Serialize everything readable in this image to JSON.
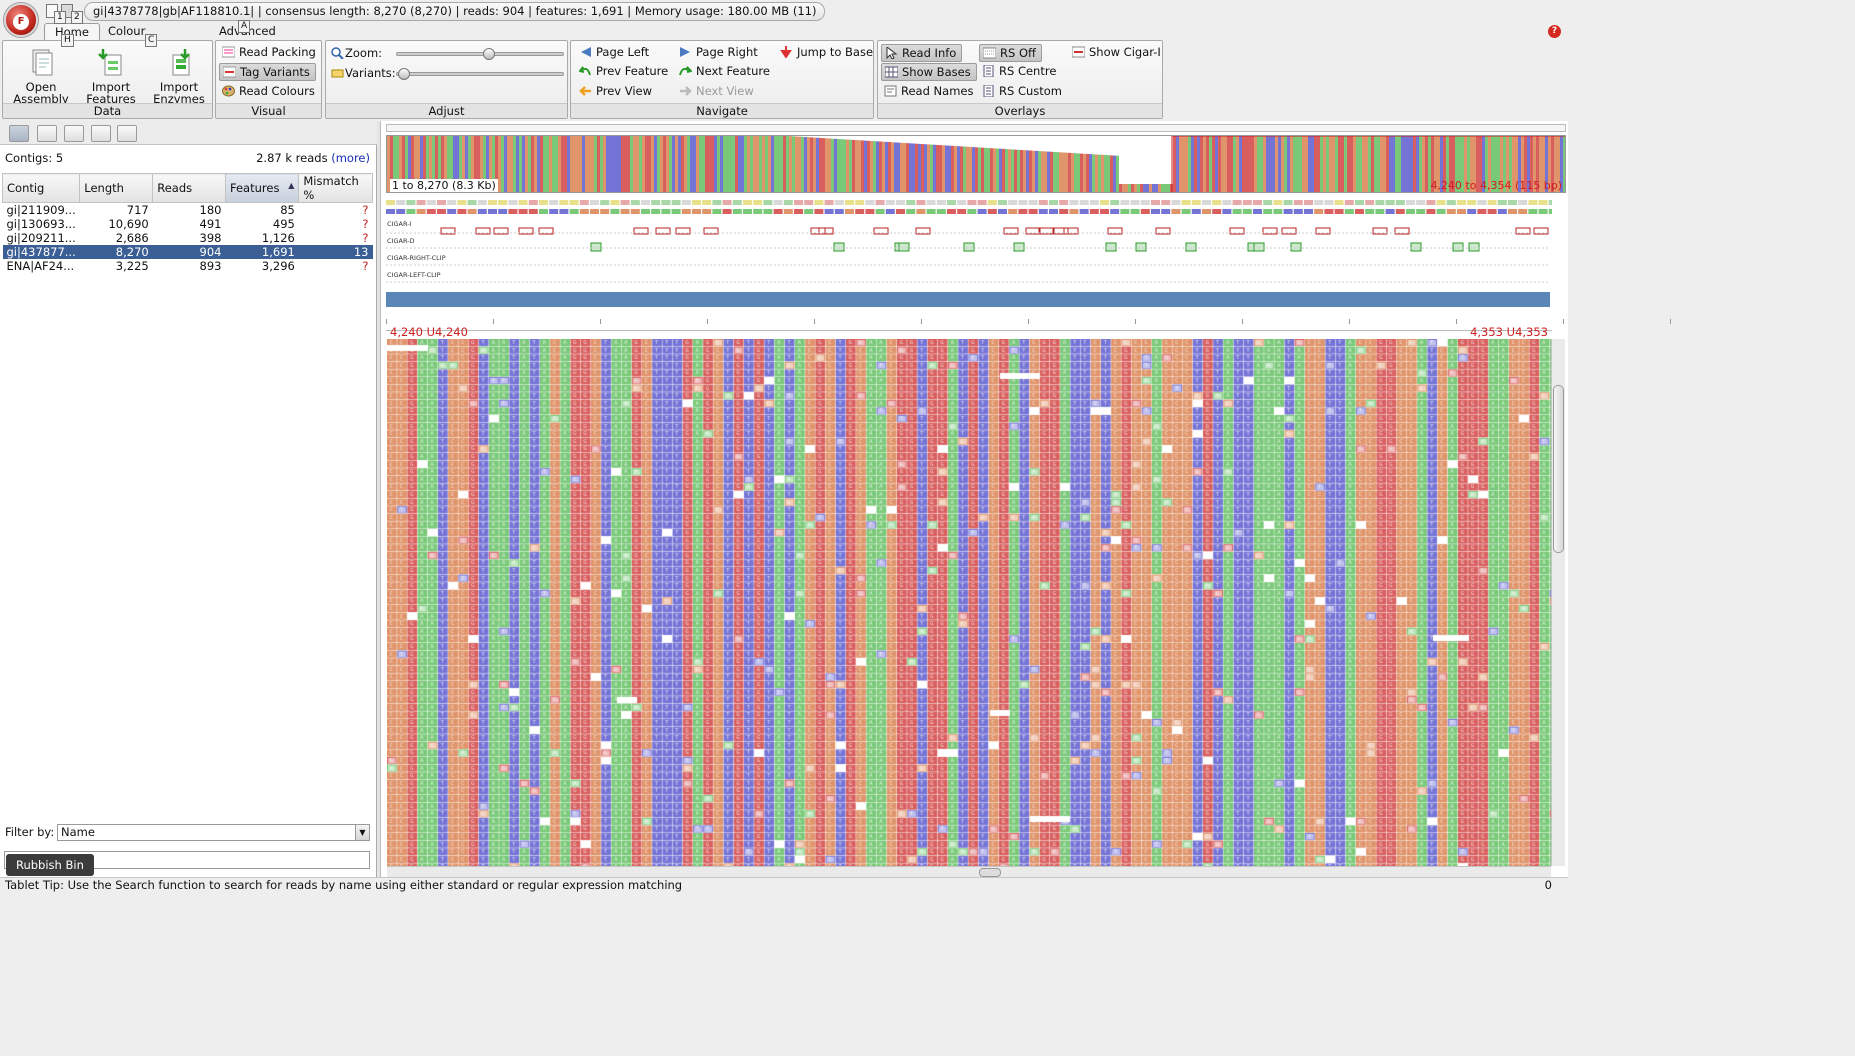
{
  "app": {
    "orb_letter": "F",
    "title": "gi|4378778|gb|AF118810.1|  |  consensus length: 8,270 (8,270)  |  reads: 904  |  features: 1,691  |  Memory usage: 180.00 MB (11)"
  },
  "keytips": {
    "q1": "1",
    "q2": "2",
    "home": "H",
    "colour": "C",
    "advanced": "A"
  },
  "tabs": [
    {
      "label": "Home"
    },
    {
      "label": "Colour Schemes"
    },
    {
      "label": "Advanced"
    }
  ],
  "ribbon": {
    "data": {
      "label": "Data",
      "open_assembly": "Open\nAssembly",
      "import_features": "Import\nFeatures",
      "import_enzymes": "Import\nEnzymes"
    },
    "visual": {
      "label": "Visual",
      "read_packing": "Read Packing",
      "tag_variants": "Tag Variants",
      "read_colours": "Read Colours"
    },
    "adjust": {
      "label": "Adjust",
      "zoom": "Zoom:",
      "variants": "Variants:"
    },
    "navigate": {
      "label": "Navigate",
      "page_left": "Page Left",
      "page_right": "Page Right",
      "jump_to_base": "Jump to Base",
      "prev_feature": "Prev Feature",
      "next_feature": "Next Feature",
      "prev_view": "Prev View",
      "next_view": "Next View"
    },
    "overlays": {
      "label": "Overlays",
      "read_info": "Read Info",
      "rs_off": "RS Off",
      "show_cigar": "Show Cigar-I",
      "show_bases": "Show Bases",
      "rs_centre": "RS Centre",
      "read_names": "Read Names",
      "rs_custom": "RS Custom"
    }
  },
  "left": {
    "contigs": "Contigs: 5",
    "reads_count": "2.87 k reads",
    "more": "(more)",
    "columns": [
      "Contig",
      "Length",
      "Reads",
      "Features",
      "Mismatch %"
    ],
    "rows": [
      {
        "contig": "gi|211909...",
        "length": "717",
        "reads": "180",
        "features": "85",
        "mismatch": "?"
      },
      {
        "contig": "gi|130693...",
        "length": "10,690",
        "reads": "491",
        "features": "495",
        "mismatch": "?"
      },
      {
        "contig": "gi|209211...",
        "length": "2,686",
        "reads": "398",
        "features": "1,126",
        "mismatch": "?"
      },
      {
        "contig": "gi|437877...",
        "length": "8,270",
        "reads": "904",
        "features": "1,691",
        "mismatch": "13"
      },
      {
        "contig": "ENA|AF24...",
        "length": "3,225",
        "reads": "893",
        "features": "3,296",
        "mismatch": "?"
      }
    ],
    "filter_label": "Filter by:",
    "filter_value": "Name",
    "rubbish_bin": "Rubbish Bin"
  },
  "view": {
    "overview_range": "1 to 8,270 (8.3 Kb)",
    "overview_window": "4,240 to 4,354 (115 bp)",
    "tracks": [
      "CIGAR-I",
      "CIGAR-D",
      "CIGAR-RIGHT-CLIP",
      "CIGAR-LEFT-CLIP"
    ],
    "pos_left": "4,240 U4,240",
    "pos_right": "4,353 U4,353"
  },
  "status": {
    "tip": "Tablet Tip: Use the Search function to search for reads by name using either standard or regular expression matching",
    "right": "0"
  },
  "colors": {
    "A": "#79c978",
    "C": "#e0946a",
    "G": "#d95f5f",
    "T": "#7473d6",
    "selected_row": "#3b5f94",
    "range_text": "#d01c1c"
  }
}
